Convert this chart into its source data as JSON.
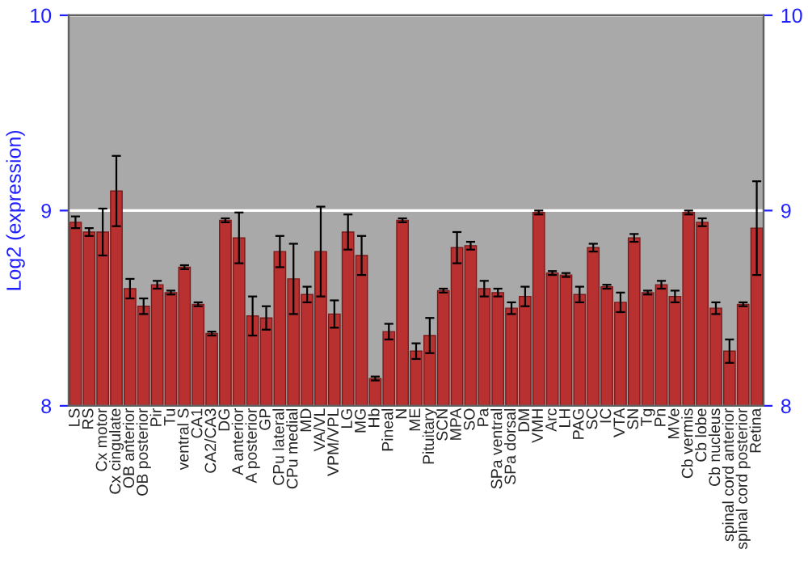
{
  "chart_data": {
    "type": "bar",
    "ylabel": "Log2 (expression)",
    "categories": [
      "LS",
      "RS",
      "Cx motor",
      "Cx cingulate",
      "OB anterior",
      "OB posterior",
      "Pir",
      "Tu",
      "ventral S",
      "CA1",
      "CA2/CA3",
      "DG",
      "A anterior",
      "A posterior",
      "GP",
      "CPu lateral",
      "CPu medial",
      "MD",
      "VA/VL",
      "VPM/VPL",
      "LG",
      "MG",
      "Hb",
      "Pineal",
      "N",
      "ME",
      "Pituitary",
      "SCN",
      "MPA",
      "SO",
      "Pa",
      "SPa ventral",
      "SPa dorsal",
      "DM",
      "VMH",
      "Arc",
      "LH",
      "PAG",
      "SC",
      "IC",
      "VTA",
      "SN",
      "Tg",
      "Pn",
      "MVe",
      "Cb vermis",
      "Cb lobe",
      "Cb nucleus",
      "spinal cord anterior",
      "spinal cord posterior",
      "Retina"
    ],
    "values": [
      8.94,
      8.89,
      8.89,
      9.1,
      8.6,
      8.51,
      8.62,
      8.58,
      8.71,
      8.52,
      8.37,
      8.95,
      8.86,
      8.46,
      8.45,
      8.79,
      8.65,
      8.57,
      8.79,
      8.47,
      8.89,
      8.77,
      8.14,
      8.38,
      8.95,
      8.28,
      8.36,
      8.59,
      8.81,
      8.82,
      8.6,
      8.58,
      8.5,
      8.56,
      8.99,
      8.68,
      8.67,
      8.57,
      8.81,
      8.61,
      8.53,
      8.86,
      8.58,
      8.62,
      8.56,
      8.99,
      8.94,
      8.5,
      8.28,
      8.52,
      8.91
    ],
    "errors": [
      0.03,
      0.02,
      0.12,
      0.18,
      0.05,
      0.04,
      0.02,
      0.01,
      0.01,
      0.01,
      0.01,
      0.01,
      0.13,
      0.1,
      0.06,
      0.08,
      0.18,
      0.04,
      0.23,
      0.07,
      0.09,
      0.1,
      0.01,
      0.04,
      0.01,
      0.04,
      0.09,
      0.01,
      0.08,
      0.02,
      0.04,
      0.02,
      0.03,
      0.05,
      0.01,
      0.01,
      0.01,
      0.04,
      0.02,
      0.01,
      0.05,
      0.02,
      0.01,
      0.02,
      0.03,
      0.01,
      0.02,
      0.03,
      0.06,
      0.01,
      0.24
    ],
    "color": "#b8302f",
    "ylim": [
      8,
      10
    ],
    "yticks": [
      8,
      9,
      10
    ],
    "y2lim": [
      8,
      10
    ],
    "y2ticks": [
      8,
      9,
      10
    ],
    "grid": "y"
  }
}
